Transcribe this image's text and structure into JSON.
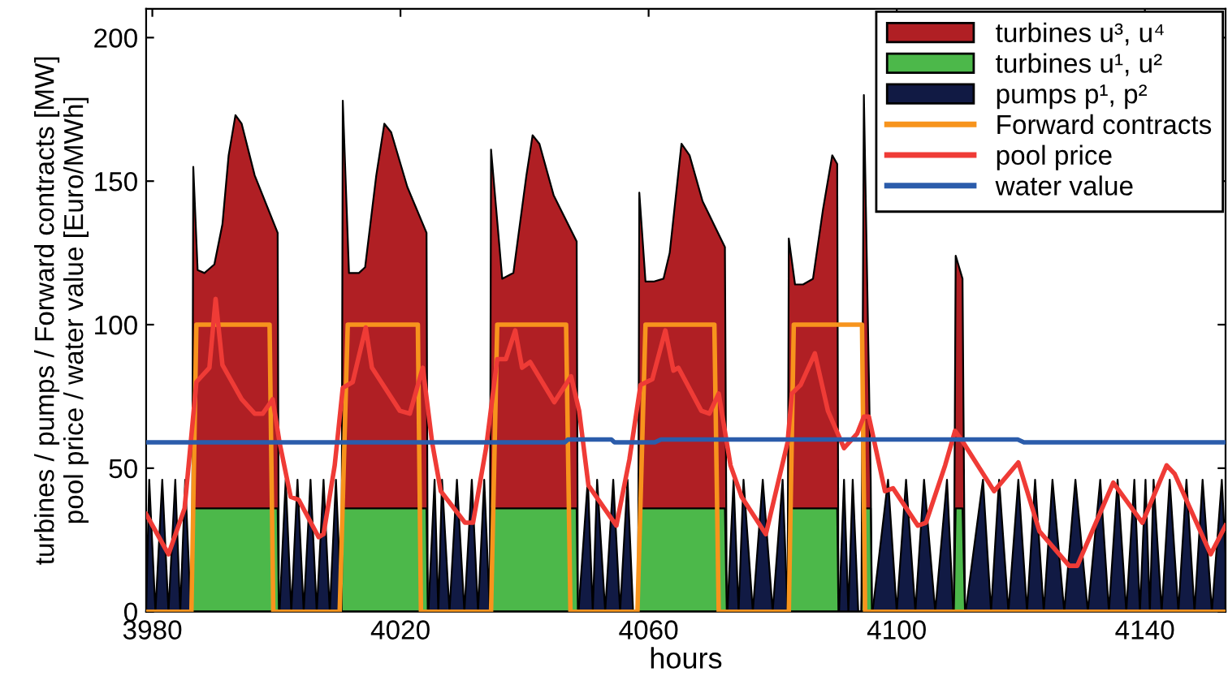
{
  "chart_data": {
    "type": "area",
    "xlabel": "hours",
    "ylabel": "turbines / pumps / Forward contracts [MW]\npool price / water value [Euro/MWh]",
    "xlim": [
      3979,
      4153
    ],
    "ylim": [
      0,
      210
    ],
    "xticks": [
      3980,
      4020,
      4060,
      4100,
      4140
    ],
    "yticks": [
      0,
      50,
      100,
      150,
      200
    ],
    "grid": false,
    "legend": "top right",
    "x": [
      3979,
      3986.4,
      3986.6,
      3987.3,
      3988.4,
      3990,
      3991.3,
      3992.3,
      3993.4,
      3994.4,
      3996.5,
      4000.2,
      4000.4,
      4010.5,
      4010.7,
      4011.7,
      4013.3,
      4014.3,
      4016.1,
      4017.4,
      4018.5,
      4021.1,
      4024.2,
      4024.4,
      4034.4,
      4034.6,
      4036.4,
      4038.2,
      4040.3,
      4041.3,
      4042.4,
      4044.7,
      4048.4,
      4048.6,
      4058.3,
      4058.5,
      4059.5,
      4060.8,
      4062.4,
      4063.4,
      4065.3,
      4066.6,
      4068.7,
      4072.3,
      4072.6,
      4082.4,
      4082.6,
      4083.6,
      4084.9,
      4086.5,
      4088.1,
      4089.6,
      4090.4,
      4090.6,
      4094.3,
      4094.7,
      4095.8,
      4096.0,
      4109.2,
      4109.5,
      4110.6,
      4111.0,
      4153
    ],
    "series": [
      {
        "name": "turbines u³, u⁴",
        "color": "#b01f24",
        "values": [
          0,
          0,
          155,
          119,
          118,
          121,
          135,
          159,
          173,
          170,
          152,
          132,
          0,
          0,
          178,
          118,
          118,
          120,
          152,
          170,
          167,
          148,
          132,
          0,
          0,
          161,
          116,
          118,
          152,
          166,
          163,
          145,
          129,
          0,
          0,
          146,
          115,
          115,
          116,
          125,
          163,
          159,
          143,
          127,
          0,
          0,
          130,
          114,
          114,
          116,
          140,
          159,
          156,
          0,
          0,
          180,
          46,
          0,
          0,
          124,
          116,
          0,
          0
        ]
      },
      {
        "name": "turbines u¹, u²",
        "color": "#4cb84a",
        "values": [
          0,
          0,
          36,
          36,
          36,
          36,
          36,
          36,
          36,
          36,
          36,
          36,
          0,
          0,
          36,
          36,
          36,
          36,
          36,
          36,
          36,
          36,
          36,
          0,
          0,
          36,
          36,
          36,
          36,
          36,
          36,
          36,
          36,
          0,
          0,
          36,
          36,
          36,
          36,
          36,
          36,
          36,
          36,
          36,
          0,
          0,
          36,
          36,
          36,
          36,
          36,
          36,
          36,
          0,
          0,
          36,
          36,
          0,
          0,
          36,
          36,
          0,
          0
        ]
      },
      {
        "name": "pumps p¹, p²",
        "color": "#111a44",
        "x": [
          3979,
          3979.5,
          3980.5,
          3981.6,
          3982.6,
          3983.7,
          3984.5,
          3985.3,
          3986.2,
          4000.5,
          4001.5,
          4002.4,
          4003.4,
          4004.4,
          4005.5,
          4006.5,
          4007.6,
          4008.6,
          4009.6,
          4010.5,
          4024.5,
          4025.5,
          4026.1,
          4026.7,
          4027.9,
          4029.1,
          4030.3,
          4031.5,
          4032.5,
          4033.5,
          4034.4,
          4048.7,
          4050.2,
          4051,
          4051.7,
          4053,
          4054.3,
          4055.4,
          4056.6,
          4057.5,
          4058.3,
          4072.7,
          4073.7,
          4074.5,
          4075.3,
          4076.8,
          4078.4,
          4080,
          4081.6,
          4082.4,
          4090.7,
          4091.5,
          4092.2,
          4092.9,
          4093.8,
          4096.1,
          4098.6,
          4100,
          4101.5,
          4103,
          4104.4,
          4106.2,
          4108.1,
          4109.1,
          4111.1,
          4113.9,
          4115.2,
          4116.5,
          4118,
          4119.6,
          4121,
          4122.3,
          4123.7,
          4125.1,
          4127,
          4128.8,
          4130.8,
          4132.8,
          4134.2,
          4135.6,
          4137,
          4138.3,
          4139.2,
          4140.1,
          4140.8,
          4141.4,
          4142.7,
          4144,
          4145.4,
          4146.7,
          4148,
          4149.3,
          4150.8,
          4152.4,
          4153
        ],
        "values": [
          0,
          46,
          0,
          46,
          0,
          46,
          0,
          46,
          0,
          0,
          46,
          0,
          46,
          0,
          46,
          0,
          46,
          0,
          46,
          0,
          0,
          46,
          0,
          46,
          0,
          46,
          0,
          46,
          0,
          46,
          0,
          0,
          46,
          0,
          46,
          0,
          46,
          0,
          46,
          0,
          0,
          0,
          46,
          0,
          46,
          0,
          46,
          0,
          46,
          0,
          0,
          46,
          0,
          46,
          0,
          0,
          46,
          0,
          46,
          0,
          46,
          0,
          46,
          0,
          0,
          46,
          0,
          46,
          0,
          46,
          0,
          46,
          0,
          46,
          0,
          46,
          0,
          46,
          0,
          46,
          0,
          46,
          0,
          46,
          0,
          46,
          0,
          46,
          0,
          46,
          0,
          46,
          0,
          46,
          20
        ]
      },
      {
        "name": "Forward contracts",
        "type": "line",
        "color": "#f7941d",
        "x": [
          3979,
          3986.3,
          3987.1,
          3998.9,
          3999.5,
          4010.2,
          4011.5,
          4022.8,
          4023.3,
          4034.6,
          4035.6,
          4046.7,
          4047.4,
          4058.2,
          4059.5,
          4070.6,
          4071.3,
          4082.6,
          4083.4,
          4094.4,
          4094.9,
          4153
        ],
        "values": [
          0,
          0,
          100,
          100,
          0,
          0,
          100,
          100,
          0,
          0,
          100,
          100,
          0,
          0,
          100,
          100,
          0,
          0,
          100,
          100,
          0,
          0
        ]
      },
      {
        "name": "pool price",
        "type": "line",
        "color": "#ef3b36",
        "x": [
          3979,
          3982.6,
          3985.2,
          3987.1,
          3989.2,
          3990.2,
          3991.3,
          3994.4,
          3996.5,
          3997.8,
          3999.4,
          4000.5,
          4002.3,
          4003.6,
          4006.8,
          4007.6,
          4009.4,
          4010.7,
          4012.3,
          4014.4,
          4015.4,
          4019.9,
          4021.5,
          4023.6,
          4025.1,
          4026.5,
          4030.4,
          4031.7,
          4033.8,
          4035.6,
          4037.0,
          4038.5,
          4039.6,
          4040.9,
          4044.8,
          4047.5,
          4048.8,
          4050.3,
          4054.8,
          4056.9,
          4058.7,
          4060.6,
          4062.7,
          4064.0,
          4064.8,
          4068.5,
          4069.8,
          4071.3,
          4073.2,
          4075.0,
          4078.9,
          4082.4,
          4083.1,
          4084.5,
          4086.8,
          4088.9,
          4091.5,
          4093.6,
          4094.7,
          4095.5,
          4098.1,
          4099.4,
          4103.4,
          4104.7,
          4107.8,
          4109.4,
          4110.7,
          4115.7,
          4119.6,
          4123.0,
          4127.8,
          4129.1,
          4134.9,
          4139.6,
          4143.5,
          4144.8,
          4150.6,
          4153
        ],
        "values": [
          34,
          20,
          36,
          80,
          85,
          109,
          86,
          74,
          69,
          69,
          74,
          59,
          40,
          39,
          26,
          27,
          51,
          78,
          80,
          99,
          85,
          70,
          69,
          85,
          59,
          42,
          31,
          31,
          57,
          88,
          88,
          98,
          85,
          87,
          73,
          82,
          70,
          44,
          30,
          53,
          79,
          81,
          98,
          84,
          85,
          70,
          69,
          76,
          51,
          40,
          27,
          59,
          76,
          79,
          90,
          70,
          57,
          62,
          68,
          68,
          42,
          43,
          30,
          31,
          51,
          63,
          59,
          42,
          52,
          28,
          16,
          16,
          45,
          31,
          51,
          48,
          20,
          30
        ]
      },
      {
        "name": "water value",
        "type": "line",
        "color": "#2b5cab",
        "x": [
          3979,
          4046.5,
          4047,
          4054,
          4054.5,
          4061,
          4062,
          4119.5,
          4120.5,
          4153
        ],
        "values": [
          59,
          59,
          60,
          60,
          59,
          59,
          60,
          60,
          59,
          59
        ]
      }
    ]
  }
}
